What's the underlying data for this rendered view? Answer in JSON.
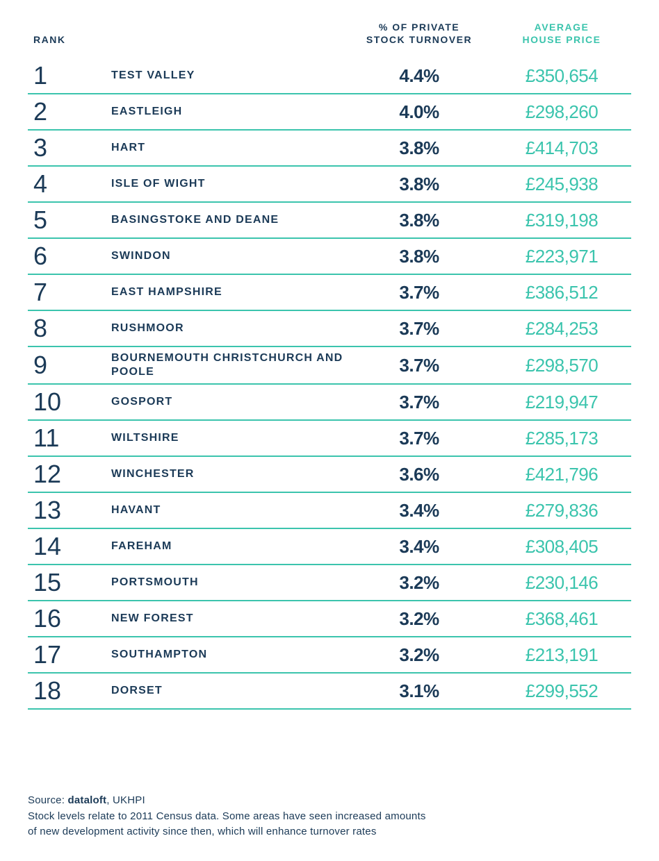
{
  "type": "table",
  "colors": {
    "text_dark": "#1b3a57",
    "accent_teal": "#3bc4ad",
    "background": "#ffffff",
    "row_border": "#3bc4ad"
  },
  "typography": {
    "rank_fontsize": 36,
    "rank_fontweight": 300,
    "name_fontsize": 16,
    "name_fontweight": 700,
    "turnover_fontsize": 26,
    "turnover_fontweight": 900,
    "price_fontsize": 26,
    "price_fontweight": 400,
    "header_fontsize": 14,
    "footer_fontsize": 15
  },
  "layout": {
    "row_border_width": 2,
    "row_min_height": 52,
    "col_rank_width": 100,
    "col_turnover_width": 210,
    "col_price_width": 200
  },
  "headers": {
    "rank": "RANK",
    "turnover_line1": "% OF PRIVATE",
    "turnover_line2": "STOCK TURNOVER",
    "price_line1": "AVERAGE",
    "price_line2": "HOUSE PRICE"
  },
  "rows": [
    {
      "rank": "1",
      "name": "TEST VALLEY",
      "turnover": "4.4%",
      "price": "£350,654"
    },
    {
      "rank": "2",
      "name": "EASTLEIGH",
      "turnover": "4.0%",
      "price": "£298,260"
    },
    {
      "rank": "3",
      "name": "HART",
      "turnover": "3.8%",
      "price": "£414,703"
    },
    {
      "rank": "4",
      "name": "ISLE OF WIGHT",
      "turnover": "3.8%",
      "price": "£245,938"
    },
    {
      "rank": "5",
      "name": "BASINGSTOKE AND DEANE",
      "turnover": "3.8%",
      "price": "£319,198"
    },
    {
      "rank": "6",
      "name": "SWINDON",
      "turnover": "3.8%",
      "price": "£223,971"
    },
    {
      "rank": "7",
      "name": "EAST HAMPSHIRE",
      "turnover": "3.7%",
      "price": "£386,512"
    },
    {
      "rank": "8",
      "name": "RUSHMOOR",
      "turnover": "3.7%",
      "price": "£284,253"
    },
    {
      "rank": "9",
      "name": "BOURNEMOUTH CHRISTCHURCH AND POOLE",
      "turnover": "3.7%",
      "price": "£298,570"
    },
    {
      "rank": "10",
      "name": "GOSPORT",
      "turnover": "3.7%",
      "price": "£219,947"
    },
    {
      "rank": "11",
      "name": "WILTSHIRE",
      "turnover": "3.7%",
      "price": "£285,173"
    },
    {
      "rank": "12",
      "name": "WINCHESTER",
      "turnover": "3.6%",
      "price": "£421,796"
    },
    {
      "rank": "13",
      "name": "HAVANT",
      "turnover": "3.4%",
      "price": "£279,836"
    },
    {
      "rank": "14",
      "name": "FAREHAM",
      "turnover": "3.4%",
      "price": "£308,405"
    },
    {
      "rank": "15",
      "name": "PORTSMOUTH",
      "turnover": "3.2%",
      "price": "£230,146"
    },
    {
      "rank": "16",
      "name": "NEW FOREST",
      "turnover": "3.2%",
      "price": "£368,461"
    },
    {
      "rank": "17",
      "name": "SOUTHAMPTON",
      "turnover": "3.2%",
      "price": "£213,191"
    },
    {
      "rank": "18",
      "name": "DORSET",
      "turnover": "3.1%",
      "price": "£299,552"
    }
  ],
  "footer": {
    "source_prefix": "Source: ",
    "source_bold": "dataloft",
    "source_suffix": ", UKHPI",
    "note_line1": "Stock levels relate to 2011 Census data. Some areas have seen increased amounts",
    "note_line2": "of new development activity since then, which will enhance turnover rates"
  }
}
